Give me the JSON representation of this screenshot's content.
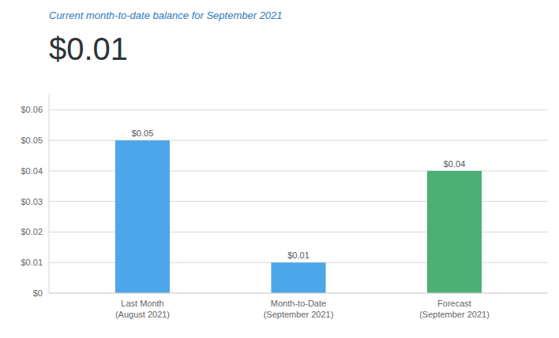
{
  "chart_data": {
    "type": "bar",
    "subtitle": "Current month-to-date balance for September 2021",
    "annotations": [
      "$0.01"
    ],
    "categories": [
      "Last Month\n(August 2021)",
      "Month-to-Date\n(September 2021)",
      "Forecast\n(September 2021)"
    ],
    "values": [
      0.05,
      0.01,
      0.04
    ],
    "colors": [
      "#4da6e8",
      "#4da6e8",
      "#4caf73"
    ],
    "data_labels": true,
    "value_labels": [
      "$0.05",
      "$0.01",
      "$0.04"
    ],
    "ylim": [
      0,
      0.065
    ],
    "yticks": [
      {
        "value": 0,
        "label": "$0"
      },
      {
        "value": 0.01,
        "label": "$0.01"
      },
      {
        "value": 0.02,
        "label": "$0.02"
      },
      {
        "value": 0.03,
        "label": "$0.03"
      },
      {
        "value": 0.04,
        "label": "$0.04"
      },
      {
        "value": 0.05,
        "label": "$0.05"
      },
      {
        "value": 0.06,
        "label": "$0.06"
      }
    ],
    "grid": true
  }
}
